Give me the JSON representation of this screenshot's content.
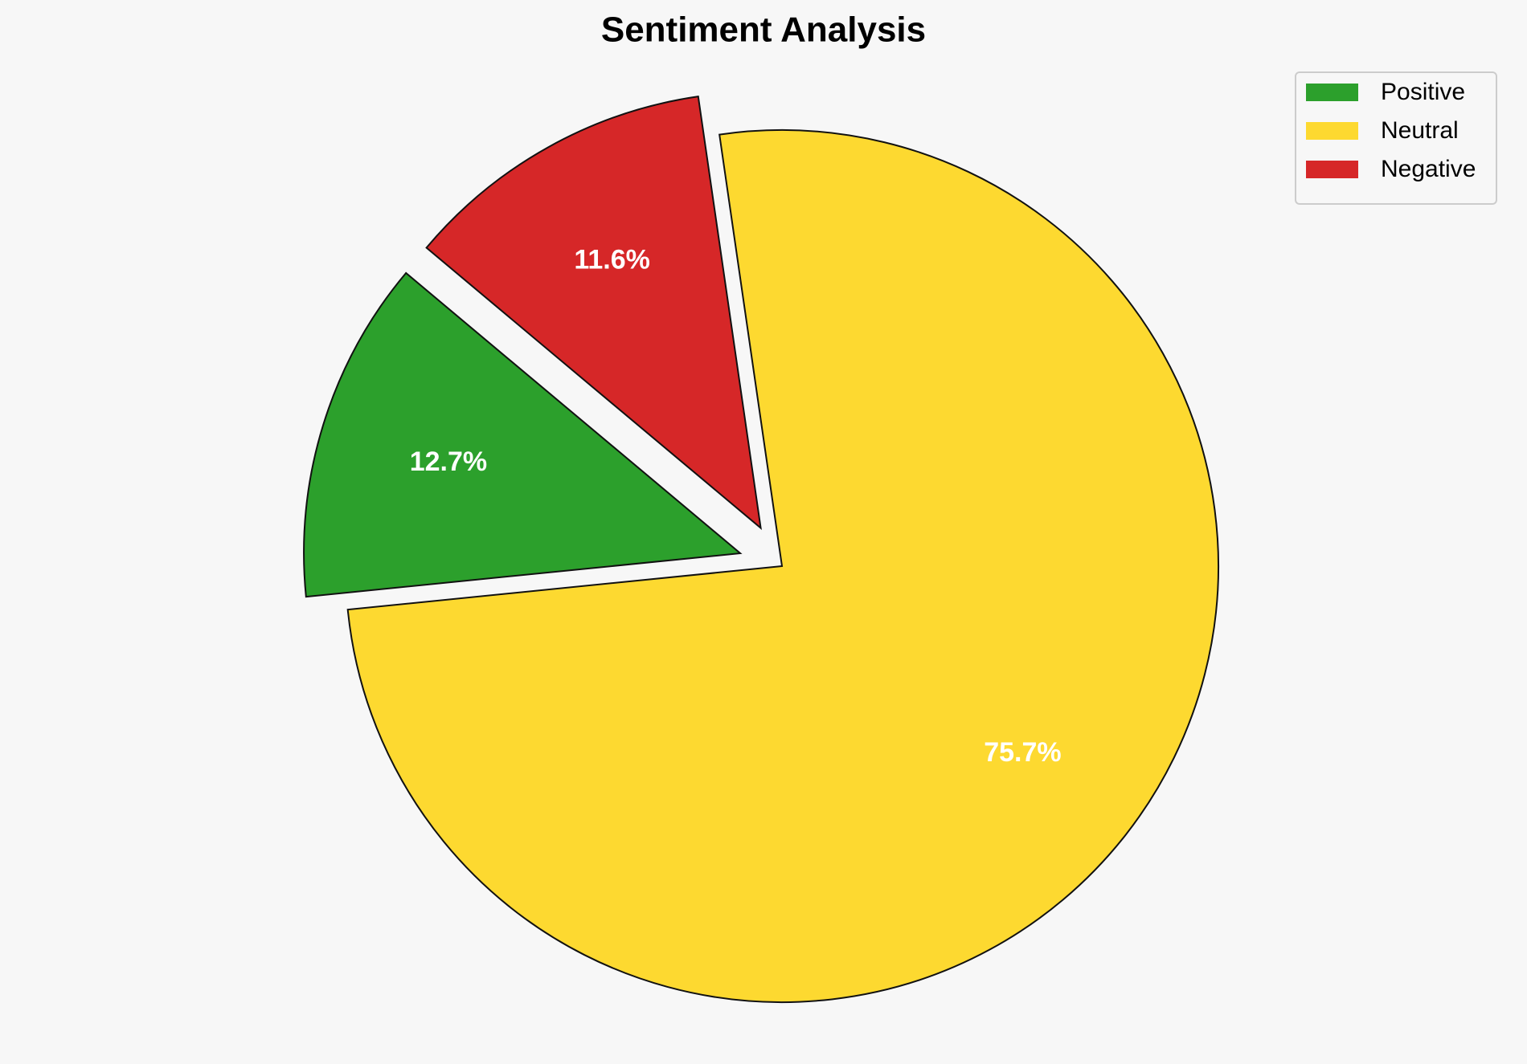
{
  "chart_data": {
    "type": "pie",
    "title": "Sentiment Analysis",
    "categories": [
      "Positive",
      "Neutral",
      "Negative"
    ],
    "values": [
      12.7,
      75.7,
      11.6
    ],
    "value_labels": [
      "12.7%",
      "75.7%",
      "11.6%"
    ],
    "colors": [
      "#2ca02c",
      "#fdd930",
      "#d62728"
    ],
    "legend": "upper right"
  }
}
